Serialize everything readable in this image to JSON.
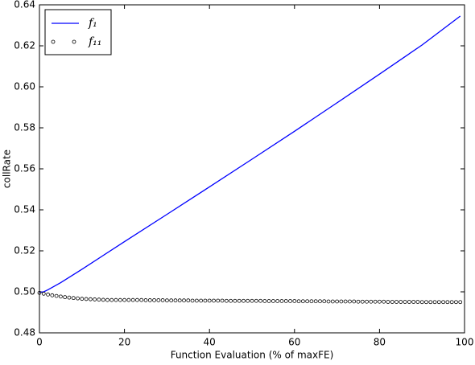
{
  "chart_data": {
    "type": "line",
    "x_label": "Function Evaluation (% of maxFE)",
    "y_label": "collRate",
    "xlim": [
      0,
      100
    ],
    "ylim": [
      0.48,
      0.64
    ],
    "xticks": [
      0,
      20,
      40,
      60,
      80,
      100
    ],
    "yticks": [
      0.48,
      {
        "value": 0.5,
        "label": "0.50"
      },
      0.52,
      0.54,
      0.56,
      0.58,
      {
        "value": 0.6,
        "label": "0.60"
      },
      0.62,
      0.64
    ],
    "legend": "upper left",
    "series": [
      {
        "name": "f₁",
        "color": "#0000ff",
        "marker": "line",
        "x": [
          0,
          1,
          2,
          5,
          10,
          20,
          30,
          40,
          50,
          60,
          70,
          80,
          90,
          99
        ],
        "values": [
          0.4998,
          0.5,
          0.501,
          0.5045,
          0.511,
          0.5245,
          0.5378,
          0.5512,
          0.5647,
          0.5783,
          0.5922,
          0.6062,
          0.6204,
          0.6345
        ]
      },
      {
        "name": "f₁₁",
        "color": "#000000",
        "marker": "circle",
        "x": [
          0,
          1,
          2,
          3,
          4,
          5,
          6,
          7,
          8,
          9,
          10,
          11,
          12,
          13,
          14,
          15,
          16,
          17,
          18,
          19,
          20,
          21,
          22,
          23,
          24,
          25,
          26,
          27,
          28,
          29,
          30,
          31,
          32,
          33,
          34,
          35,
          36,
          37,
          38,
          39,
          40,
          41,
          42,
          43,
          44,
          45,
          46,
          47,
          48,
          49,
          50,
          51,
          52,
          53,
          54,
          55,
          56,
          57,
          58,
          59,
          60,
          61,
          62,
          63,
          64,
          65,
          66,
          67,
          68,
          69,
          70,
          71,
          72,
          73,
          74,
          75,
          76,
          77,
          78,
          79,
          80,
          81,
          82,
          83,
          84,
          85,
          86,
          87,
          88,
          89,
          90,
          91,
          92,
          93,
          94,
          95,
          96,
          97,
          98,
          99
        ],
        "values": [
          0.4995,
          0.4991,
          0.4987,
          0.4983,
          0.498,
          0.4977,
          0.4974,
          0.4972,
          0.497,
          0.4968,
          0.4966,
          0.4965,
          0.4964,
          0.4963,
          0.4962,
          0.4961,
          0.496,
          0.496,
          0.496,
          0.496,
          0.496,
          0.496,
          0.496,
          0.496,
          0.496,
          0.4959,
          0.4959,
          0.4959,
          0.4959,
          0.4959,
          0.4958,
          0.4958,
          0.4958,
          0.4958,
          0.4958,
          0.4958,
          0.4957,
          0.4957,
          0.4957,
          0.4957,
          0.4957,
          0.4957,
          0.4957,
          0.4957,
          0.4956,
          0.4956,
          0.4956,
          0.4956,
          0.4956,
          0.4956,
          0.4956,
          0.4956,
          0.4956,
          0.4955,
          0.4955,
          0.4955,
          0.4955,
          0.4955,
          0.4955,
          0.4955,
          0.4955,
          0.4954,
          0.4954,
          0.4954,
          0.4954,
          0.4954,
          0.4954,
          0.4954,
          0.4953,
          0.4953,
          0.4953,
          0.4953,
          0.4953,
          0.4953,
          0.4953,
          0.4952,
          0.4952,
          0.4952,
          0.4952,
          0.4952,
          0.4952,
          0.4952,
          0.4951,
          0.4951,
          0.4951,
          0.4951,
          0.4951,
          0.4951,
          0.4951,
          0.4951,
          0.495,
          0.495,
          0.495,
          0.495,
          0.495,
          0.495,
          0.495,
          0.495,
          0.495,
          0.495
        ]
      }
    ]
  }
}
